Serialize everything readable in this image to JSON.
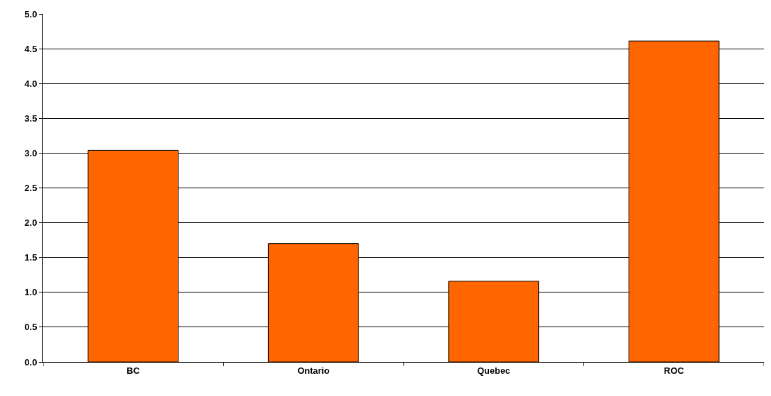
{
  "chart_data": {
    "type": "bar",
    "categories": [
      "BC",
      "Ontario",
      "Quebec",
      "ROC"
    ],
    "values": [
      3.04,
      1.7,
      1.16,
      4.61
    ],
    "color": "#ff6600",
    "ylim": [
      0,
      5
    ],
    "yticks": [
      {
        "value": 0,
        "label": "0.0"
      },
      {
        "value": 0.5,
        "label": "0.5"
      },
      {
        "value": 1,
        "label": "1.0"
      },
      {
        "value": 1.5,
        "label": "1.5"
      },
      {
        "value": 2,
        "label": "2.0"
      },
      {
        "value": 2.5,
        "label": "2.5"
      },
      {
        "value": 3,
        "label": "3.0"
      },
      {
        "value": 3.5,
        "label": "3.5"
      },
      {
        "value": 4,
        "label": "4.0"
      },
      {
        "value": 4.5,
        "label": "4.5"
      },
      {
        "value": 5,
        "label": "5.0"
      }
    ],
    "grid": "y"
  }
}
